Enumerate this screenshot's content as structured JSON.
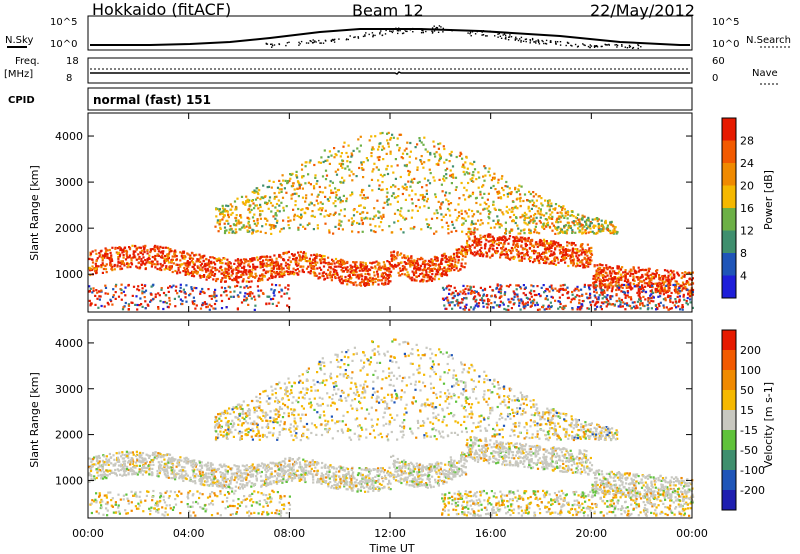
{
  "header": {
    "site": "Hokkaido (fitACF)",
    "beam": "Beam 12",
    "date": "22/May/2012"
  },
  "noise_panel": {
    "left_label": "N.Sky",
    "right_label": "N.Search",
    "left_ticks": [
      "10^5",
      "10^0"
    ],
    "right_ticks": [
      "10^5",
      "10^0"
    ]
  },
  "freq_panel": {
    "left_label_1": "Freq.",
    "left_label_2": "[MHz]",
    "right_label": "Nave",
    "left_ticks": [
      "18",
      "8"
    ],
    "right_ticks": [
      "60",
      "0"
    ]
  },
  "cpid_panel": {
    "label": "CPID",
    "text": "normal (fast) 151"
  },
  "chart_data": [
    {
      "type": "heatmap",
      "quantity": "Power",
      "ylabel": "Slant Range [km]",
      "colorbar_label": "Power [dB]",
      "ylim": [
        180,
        4500
      ],
      "y_ticks": [
        1000,
        2000,
        3000,
        4000
      ],
      "colorbar_ticks": [
        4,
        8,
        12,
        16,
        20,
        24,
        28
      ],
      "colors": [
        "#1f1fd9",
        "#1f55b8",
        "#3f8f6e",
        "#6cb046",
        "#f5b800",
        "#f08a00",
        "#f25a00",
        "#e61a00"
      ]
    },
    {
      "type": "heatmap",
      "quantity": "Velocity",
      "ylabel": "Slant Range [km]",
      "colorbar_label": "Velocity [m s-1]",
      "ylim": [
        180,
        4500
      ],
      "y_ticks": [
        1000,
        2000,
        3000,
        4000
      ],
      "colorbar_ticks": [
        200,
        100,
        50,
        15,
        -15,
        -50,
        -100,
        -200
      ],
      "colors": [
        "#1f1fb0",
        "#1f55b8",
        "#3f8f6e",
        "#5fc23a",
        "#c8c8c0",
        "#f5b800",
        "#f08a00",
        "#f25a00",
        "#e61a00"
      ]
    }
  ],
  "time_axis": {
    "xlabel": "Time UT",
    "ticks": [
      "00:00",
      "04:00",
      "08:00",
      "12:00",
      "16:00",
      "20:00",
      "00:00"
    ]
  }
}
